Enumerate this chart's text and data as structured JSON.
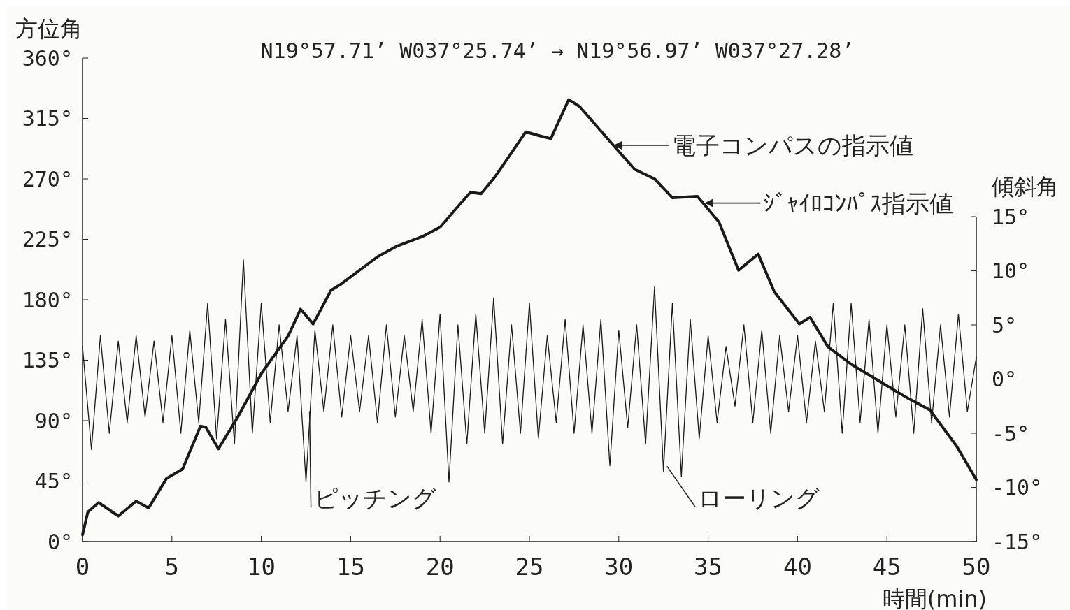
{
  "chart_data": {
    "type": "line",
    "title": "N19°57.71’ W037°25.74’ → N19°56.97’ W037°27.28’",
    "xlabel": "時間(min)",
    "ylabel": "方位角",
    "y2label": "傾斜角",
    "xlim": [
      0,
      50
    ],
    "xticks": [
      0,
      5,
      10,
      15,
      20,
      25,
      30,
      35,
      40,
      45,
      50
    ],
    "ylim": [
      0,
      360
    ],
    "yticks": [
      {
        "value": 0,
        "label": "0°"
      },
      {
        "value": 45,
        "label": "45°"
      },
      {
        "value": 90,
        "label": "90°"
      },
      {
        "value": 135,
        "label": "135°"
      },
      {
        "value": 180,
        "label": "180°"
      },
      {
        "value": 225,
        "label": "225°"
      },
      {
        "value": 270,
        "label": "270°"
      },
      {
        "value": 315,
        "label": "315°"
      },
      {
        "value": 360,
        "label": "360°"
      }
    ],
    "y2lim": [
      -15,
      15
    ],
    "y2ticks": [
      {
        "value": -15,
        "label": "-15°"
      },
      {
        "value": -10,
        "label": "-10°"
      },
      {
        "value": -5,
        "label": "-5°"
      },
      {
        "value": 0,
        "label": "0°"
      },
      {
        "value": 5,
        "label": "5°"
      },
      {
        "value": 10,
        "label": "10°"
      },
      {
        "value": 15,
        "label": "15°"
      }
    ],
    "grid": false,
    "marker": "none",
    "line_style": "solid",
    "series": [
      {
        "color": "#1a1a1a",
        "x": [
          0,
          0.3,
          0.9,
          2.0,
          3.0,
          3.7,
          4.7,
          5.6,
          6.6,
          6.9,
          7.6,
          8.7,
          10,
          11.5,
          12.2,
          12.9,
          13.9,
          14.5,
          16.5,
          17.6,
          19,
          20,
          21.1,
          21.7,
          22.3,
          23.1,
          24.8,
          25.6,
          26.2,
          27.2,
          27.8,
          29.7,
          30.9,
          32,
          33,
          34.4,
          35.6,
          36.7,
          37.8,
          38.7,
          40.1,
          40.7,
          41.7,
          43,
          44.5,
          46,
          47.4,
          48.9,
          50
        ],
        "values": [
          5,
          22,
          29,
          19,
          30,
          25,
          47,
          54,
          86,
          85,
          69,
          93,
          125,
          153,
          173,
          162,
          187,
          192,
          212,
          220,
          227,
          234,
          251,
          260,
          259,
          272,
          305,
          302,
          300,
          329,
          324,
          295,
          277,
          270,
          256,
          257,
          238,
          202,
          214,
          186,
          162,
          167,
          145,
          132,
          120,
          108,
          98,
          71,
          46
        ]
      },
      {
        "type": "line",
        "axis": "y2",
        "color": "#1a1a1a",
        "x": [
          0,
          0.5,
          1,
          1.5,
          2,
          2.5,
          3,
          3.5,
          4,
          4.5,
          5,
          5.5,
          6,
          6.5,
          7,
          7.5,
          8,
          8.5,
          9,
          9.5,
          10,
          10.5,
          11,
          11.5,
          12,
          12.5,
          13,
          13.5,
          14,
          14.5,
          15,
          15.5,
          16,
          16.5,
          17,
          17.5,
          18,
          18.5,
          19,
          19.5,
          20,
          20.5,
          21,
          21.5,
          22,
          22.5,
          23,
          23.5,
          24,
          24.5,
          25,
          25.5,
          26,
          26.5,
          27,
          27.5,
          28,
          28.5,
          29,
          29.5,
          30,
          30.5,
          31,
          31.5,
          32,
          32.5,
          33,
          33.5,
          34,
          34.5,
          35,
          35.5,
          36,
          36.5,
          37,
          37.5,
          38,
          38.5,
          39,
          39.5,
          40,
          40.5,
          41,
          41.5,
          42,
          42.5,
          43,
          43.5,
          44,
          44.5,
          45,
          45.5,
          46,
          46.5,
          47,
          47.5,
          48,
          48.5,
          49,
          49.5,
          50
        ],
        "values": [
          3,
          -6.5,
          4,
          -5,
          3.5,
          -4,
          4,
          -3.5,
          3.5,
          -4,
          4,
          -5,
          4.5,
          -4,
          7,
          -5.5,
          5.5,
          -6,
          11,
          -5,
          7,
          -4,
          5,
          -3,
          4,
          -9.5,
          4.5,
          -3,
          5,
          -3.5,
          4,
          -3,
          4,
          -4,
          5,
          -3.5,
          4,
          -3,
          5.5,
          -5,
          6,
          -9.5,
          5,
          -6,
          6,
          -5,
          7.5,
          -6,
          5,
          -5,
          7,
          -5.5,
          4,
          -4,
          5.5,
          -5,
          5,
          -5,
          5.5,
          -8,
          4.5,
          -4.5,
          5,
          -6,
          8.5,
          -8.5,
          7,
          -9,
          5.5,
          -5.5,
          4,
          -4,
          3,
          -2.5,
          5,
          -4,
          4.5,
          -5,
          4,
          -3,
          4,
          -4,
          3.5,
          -3,
          7,
          -5,
          7,
          -4,
          5.5,
          -5,
          5,
          -3.5,
          5,
          -5,
          6.5,
          -4,
          5,
          -3.5,
          6,
          -3,
          2
        ]
      }
    ],
    "annotations": [
      {
        "text": "電子コンパスの指示値",
        "x": 29.7,
        "y": 295
      },
      {
        "text": "ｼﾞｬｲﾛｺﾝﾊﾟｽ指示値",
        "x": 34.8,
        "y": 252
      },
      {
        "text": "ピッチング",
        "x": 12.7,
        "y": 97
      },
      {
        "text": "ローリング",
        "x": 32.7,
        "y": 56
      }
    ]
  }
}
